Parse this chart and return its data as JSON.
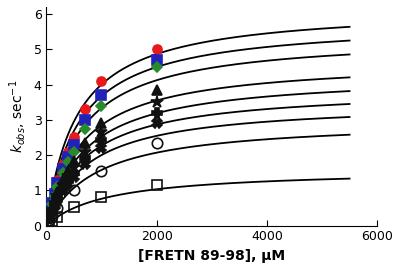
{
  "xlabel": "[FRETN 89-98], μM",
  "xlim": [
    0,
    5500
  ],
  "ylim": [
    0,
    6.2
  ],
  "xticks": [
    0,
    2000,
    4000,
    6000
  ],
  "yticks": [
    0,
    1,
    2,
    3,
    4,
    5,
    6
  ],
  "series": [
    {
      "label": "red_circle",
      "marker": "o",
      "color": "#e8191a",
      "fillstyle": "full",
      "markersize": 6.5,
      "Vmax": 6.2,
      "Km": 550,
      "x_data": [
        50,
        100,
        150,
        200,
        300,
        400,
        500,
        700,
        1000,
        2000
      ],
      "y_data": [
        0.4,
        0.7,
        1.0,
        1.3,
        1.75,
        2.1,
        2.5,
        3.3,
        4.1,
        5.0
      ]
    },
    {
      "label": "blue_square",
      "marker": "s",
      "color": "#2222bb",
      "fillstyle": "full",
      "markersize": 6.5,
      "Vmax": 5.8,
      "Km": 580,
      "x_data": [
        50,
        100,
        150,
        200,
        300,
        400,
        500,
        700,
        1000,
        2000
      ],
      "y_data": [
        0.35,
        0.65,
        0.9,
        1.2,
        1.6,
        1.95,
        2.3,
        3.0,
        3.7,
        4.7
      ]
    },
    {
      "label": "green_diamond",
      "marker": "D",
      "color": "#2a8a2a",
      "fillstyle": "full",
      "markersize": 5.5,
      "Vmax": 5.4,
      "Km": 620,
      "x_data": [
        50,
        100,
        150,
        200,
        300,
        400,
        500,
        700,
        1000,
        2000
      ],
      "y_data": [
        0.3,
        0.6,
        0.85,
        1.1,
        1.5,
        1.8,
        2.1,
        2.75,
        3.4,
        4.5
      ]
    },
    {
      "label": "black_triangle_up",
      "marker": "^",
      "color": "#111111",
      "fillstyle": "full",
      "markersize": 6.5,
      "Vmax": 4.7,
      "Km": 650,
      "x_data": [
        50,
        100,
        150,
        200,
        300,
        400,
        500,
        700,
        1000,
        2000
      ],
      "y_data": [
        0.27,
        0.5,
        0.72,
        0.95,
        1.28,
        1.55,
        1.82,
        2.35,
        2.9,
        3.85
      ]
    },
    {
      "label": "black_star",
      "marker": "*",
      "color": "#111111",
      "fillstyle": "full",
      "markersize": 9,
      "Vmax": 4.3,
      "Km": 700,
      "x_data": [
        50,
        100,
        150,
        200,
        300,
        400,
        500,
        700,
        1000,
        2000
      ],
      "y_data": [
        0.25,
        0.45,
        0.65,
        0.85,
        1.15,
        1.4,
        1.65,
        2.1,
        2.65,
        3.5
      ]
    },
    {
      "label": "black_plus",
      "marker": "P",
      "color": "#111111",
      "fillstyle": "full",
      "markersize": 7,
      "Vmax": 3.9,
      "Km": 720,
      "x_data": [
        50,
        100,
        150,
        200,
        300,
        400,
        500,
        700,
        1000,
        2000
      ],
      "y_data": [
        0.22,
        0.42,
        0.6,
        0.78,
        1.05,
        1.27,
        1.5,
        1.92,
        2.42,
        3.2
      ]
    },
    {
      "label": "black_x",
      "marker": "X",
      "color": "#111111",
      "fillstyle": "full",
      "markersize": 6.5,
      "Vmax": 3.5,
      "Km": 750,
      "x_data": [
        50,
        100,
        150,
        200,
        300,
        400,
        500,
        700,
        1000,
        2000
      ],
      "y_data": [
        0.2,
        0.38,
        0.55,
        0.72,
        0.97,
        1.17,
        1.38,
        1.75,
        2.2,
        2.9
      ]
    },
    {
      "label": "black_circle_open",
      "marker": "o",
      "color": "#111111",
      "fillstyle": "none",
      "markersize": 7.5,
      "Vmax": 3.0,
      "Km": 900,
      "x_data": [
        50,
        100,
        200,
        500,
        1000,
        2000
      ],
      "y_data": [
        0.15,
        0.28,
        0.5,
        1.0,
        1.55,
        2.35
      ]
    },
    {
      "label": "black_square_open",
      "marker": "s",
      "color": "#111111",
      "fillstyle": "none",
      "markersize": 7.5,
      "Vmax": 1.6,
      "Km": 1100,
      "x_data": [
        50,
        100,
        200,
        500,
        1000,
        2000
      ],
      "y_data": [
        0.07,
        0.13,
        0.24,
        0.52,
        0.82,
        1.15
      ]
    }
  ],
  "curve_color": "#000000",
  "curve_lw": 1.3,
  "bg_color": "#ffffff",
  "ylabel_fontsize": 10,
  "xlabel_fontsize": 10,
  "tick_fontsize": 9
}
